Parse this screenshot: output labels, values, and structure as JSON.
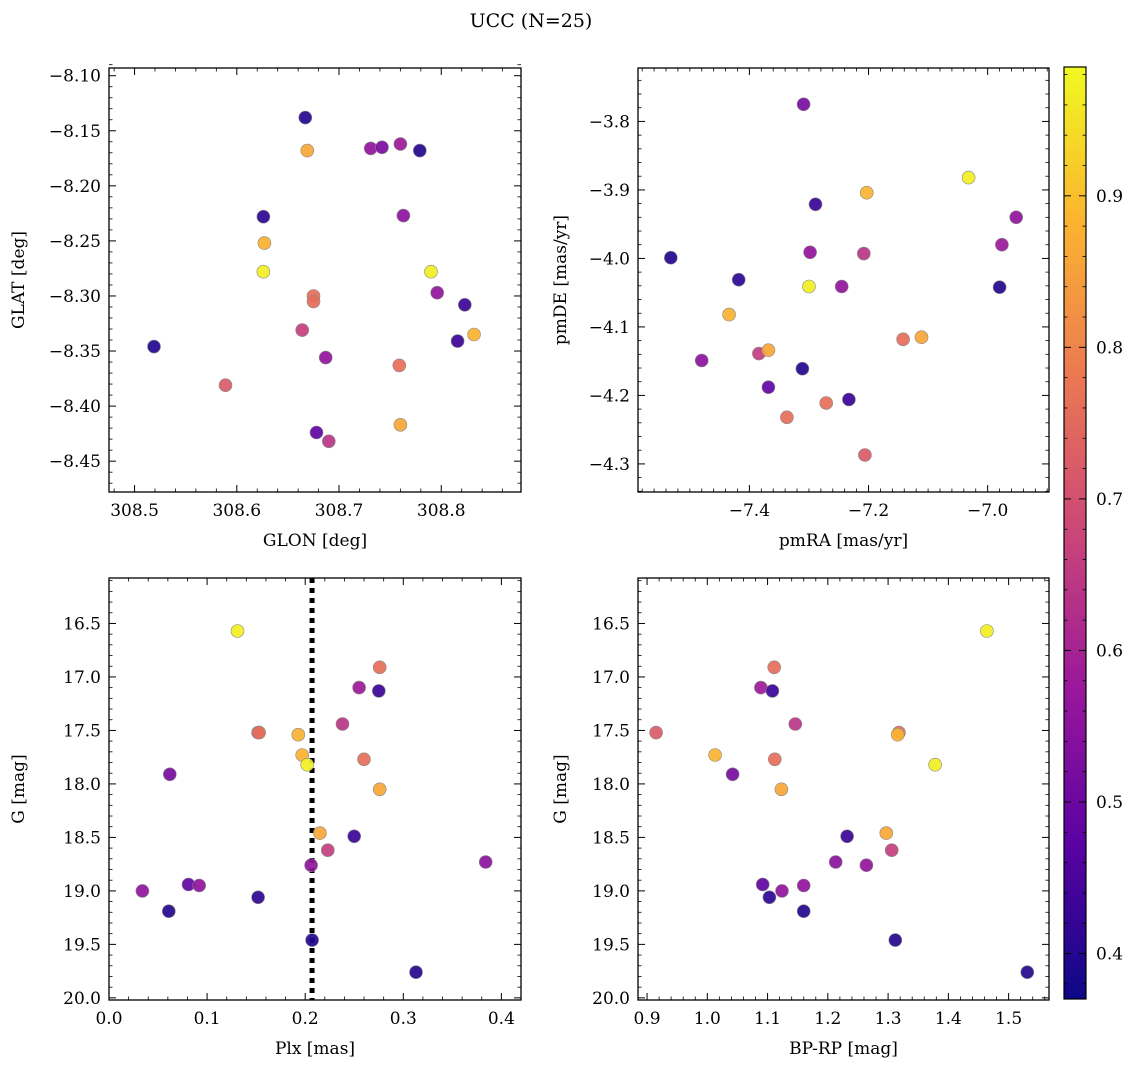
{
  "title": "UCC (N=25)",
  "colors": {
    "star_edge": "#8a8a8a",
    "reference_line": "#000000",
    "colormap": [
      "#0d0887",
      "#5b02a3",
      "#9a179b",
      "#cb4678",
      "#eb7852",
      "#fbb32f",
      "#f0f921"
    ]
  },
  "colorbar": {
    "vmin": 0.37,
    "vmax": 0.985,
    "ticks": [
      0.4,
      0.5,
      0.6,
      0.7,
      0.8,
      0.9
    ],
    "tick_labels": [
      "0.4",
      "0.5",
      "0.6",
      "0.7",
      "0.8",
      "0.9"
    ]
  },
  "stars": [
    {
      "glon": 308.519,
      "glat": -8.346,
      "pmra": -7.532,
      "pmde": -3.999,
      "plx": 0.061,
      "g": 19.19,
      "bprp": 1.16,
      "prob": 0.4
    },
    {
      "glon": 308.589,
      "glat": -8.381,
      "pmra": -7.206,
      "pmde": -4.287,
      "plx": 0.152,
      "g": 17.52,
      "bprp": 0.915,
      "prob": 0.72
    },
    {
      "glon": 308.626,
      "glat": -8.228,
      "pmra": -7.418,
      "pmde": -4.031,
      "plx": 0.152,
      "g": 19.06,
      "bprp": 1.103,
      "prob": 0.41
    },
    {
      "glon": 308.627,
      "glat": -8.252,
      "pmra": -7.434,
      "pmde": -4.082,
      "plx": 0.197,
      "g": 17.73,
      "bprp": 1.013,
      "prob": 0.88
    },
    {
      "glon": 308.626,
      "glat": -8.278,
      "pmra": -7.032,
      "pmde": -3.882,
      "plx": 0.131,
      "g": 16.57,
      "bprp": 1.464,
      "prob": 0.97
    },
    {
      "glon": 308.664,
      "glat": -8.331,
      "pmra": -7.384,
      "pmde": -4.139,
      "plx": 0.223,
      "g": 18.62,
      "bprp": 1.306,
      "prob": 0.66
    },
    {
      "glon": 308.667,
      "glat": -8.138,
      "pmra": -7.311,
      "pmde": -4.161,
      "plx": 0.207,
      "g": 19.46,
      "bprp": 1.312,
      "prob": 0.4
    },
    {
      "glon": 308.669,
      "glat": -8.168,
      "pmra": -7.368,
      "pmde": -4.134,
      "plx": 0.215,
      "g": 18.46,
      "bprp": 1.297,
      "prob": 0.86
    },
    {
      "glon": 308.675,
      "glat": -8.3,
      "pmra": -7.337,
      "pmde": -4.232,
      "plx": 0.153,
      "g": 17.52,
      "bprp": 1.318,
      "prob": 0.76
    },
    {
      "glon": 308.675,
      "glat": -8.305,
      "pmra": -7.142,
      "pmde": -4.118,
      "plx": 0.276,
      "g": 16.91,
      "bprp": 1.111,
      "prob": 0.76
    },
    {
      "glon": 308.678,
      "glat": -8.424,
      "pmra": -7.368,
      "pmde": -4.188,
      "plx": 0.081,
      "g": 18.94,
      "bprp": 1.092,
      "prob": 0.48
    },
    {
      "glon": 308.687,
      "glat": -8.356,
      "pmra": -7.298,
      "pmde": -3.991,
      "plx": 0.034,
      "g": 19.0,
      "bprp": 1.124,
      "prob": 0.56
    },
    {
      "glon": 308.69,
      "glat": -8.432,
      "pmra": -7.208,
      "pmde": -3.993,
      "plx": 0.238,
      "g": 17.44,
      "bprp": 1.146,
      "prob": 0.64
    },
    {
      "glon": 308.731,
      "glat": -8.166,
      "pmra": -7.245,
      "pmde": -4.041,
      "plx": 0.092,
      "g": 18.95,
      "bprp": 1.16,
      "prob": 0.56
    },
    {
      "glon": 308.742,
      "glat": -8.165,
      "pmra": -7.309,
      "pmde": -3.775,
      "plx": 0.062,
      "g": 17.91,
      "bprp": 1.042,
      "prob": 0.52
    },
    {
      "glon": 308.759,
      "glat": -8.363,
      "pmra": -7.271,
      "pmde": -4.211,
      "plx": 0.26,
      "g": 17.77,
      "bprp": 1.112,
      "prob": 0.76
    },
    {
      "glon": 308.76,
      "glat": -8.417,
      "pmra": -7.111,
      "pmde": -4.115,
      "plx": 0.276,
      "g": 18.05,
      "bprp": 1.123,
      "prob": 0.86
    },
    {
      "glon": 308.76,
      "glat": -8.162,
      "pmra": -6.976,
      "pmde": -3.98,
      "plx": 0.255,
      "g": 17.1,
      "bprp": 1.089,
      "prob": 0.58
    },
    {
      "glon": 308.763,
      "glat": -8.227,
      "pmra": -7.48,
      "pmde": -4.149,
      "plx": 0.384,
      "g": 18.73,
      "bprp": 1.213,
      "prob": 0.55
    },
    {
      "glon": 308.779,
      "glat": -8.168,
      "pmra": -6.98,
      "pmde": -4.042,
      "plx": 0.313,
      "g": 19.76,
      "bprp": 1.531,
      "prob": 0.4
    },
    {
      "glon": 308.79,
      "glat": -8.278,
      "pmra": -7.3,
      "pmde": -4.041,
      "plx": 0.202,
      "g": 17.82,
      "bprp": 1.378,
      "prob": 0.97
    },
    {
      "glon": 308.796,
      "glat": -8.297,
      "pmra": -6.952,
      "pmde": -3.94,
      "plx": 0.206,
      "g": 18.76,
      "bprp": 1.264,
      "prob": 0.56
    },
    {
      "glon": 308.816,
      "glat": -8.341,
      "pmra": -7.233,
      "pmde": -4.206,
      "plx": 0.25,
      "g": 18.49,
      "bprp": 1.232,
      "prob": 0.43
    },
    {
      "glon": 308.823,
      "glat": -8.308,
      "pmra": -7.289,
      "pmde": -3.921,
      "plx": 0.275,
      "g": 17.13,
      "bprp": 1.108,
      "prob": 0.43
    },
    {
      "glon": 308.832,
      "glat": -8.335,
      "pmra": -7.203,
      "pmde": -3.904,
      "plx": 0.193,
      "g": 17.54,
      "bprp": 1.316,
      "prob": 0.88
    }
  ],
  "chart_data": [
    {
      "type": "scatter",
      "xlabel": "GLON [deg]",
      "ylabel": "GLAT [deg]",
      "x_field": "glon",
      "y_field": "glat",
      "xlim": [
        308.475,
        308.878
      ],
      "ylim": [
        -8.478,
        -8.093
      ],
      "y_inverted": false,
      "xticks": [
        308.5,
        308.6,
        308.7,
        308.8
      ],
      "xtick_labels": [
        "308.5",
        "308.6",
        "308.7",
        "308.8"
      ],
      "xminor": [
        308.48,
        308.52,
        308.54,
        308.56,
        308.58,
        308.62,
        308.64,
        308.66,
        308.68,
        308.72,
        308.74,
        308.76,
        308.78,
        308.82,
        308.84,
        308.86
      ],
      "yticks": [
        -8.45,
        -8.4,
        -8.35,
        -8.3,
        -8.25,
        -8.2,
        -8.15,
        -8.1
      ],
      "ytick_labels": [
        "−8.45",
        "−8.40",
        "−8.35",
        "−8.30",
        "−8.25",
        "−8.20",
        "−8.15",
        "−8.10"
      ],
      "yminor": [
        -8.47,
        -8.46,
        -8.44,
        -8.43,
        -8.42,
        -8.41,
        -8.39,
        -8.38,
        -8.37,
        -8.36,
        -8.34,
        -8.33,
        -8.32,
        -8.31,
        -8.29,
        -8.28,
        -8.27,
        -8.26,
        -8.24,
        -8.23,
        -8.22,
        -8.21,
        -8.19,
        -8.18,
        -8.17,
        -8.16,
        -8.14,
        -8.13,
        -8.12,
        -8.11,
        -8.09
      ],
      "vline": null
    },
    {
      "type": "scatter",
      "xlabel": "pmRA [mas/yr]",
      "ylabel": "pmDE [mas/yr]",
      "x_field": "pmra",
      "y_field": "pmde",
      "xlim": [
        -7.587,
        -6.897
      ],
      "ylim": [
        -4.341,
        -3.722
      ],
      "y_inverted": false,
      "xticks": [
        -7.4,
        -7.2,
        -7.0
      ],
      "xtick_labels": [
        "−7.4",
        "−7.2",
        "−7.0"
      ],
      "xminor": [
        -7.58,
        -7.56,
        -7.54,
        -7.52,
        -7.5,
        -7.48,
        -7.46,
        -7.44,
        -7.42,
        -7.38,
        -7.36,
        -7.34,
        -7.32,
        -7.3,
        -7.28,
        -7.26,
        -7.24,
        -7.22,
        -7.18,
        -7.16,
        -7.14,
        -7.12,
        -7.1,
        -7.08,
        -7.06,
        -7.04,
        -7.02,
        -6.98,
        -6.96,
        -6.94,
        -6.92,
        -6.9
      ],
      "yticks": [
        -4.3,
        -4.2,
        -4.1,
        -4.0,
        -3.9,
        -3.8
      ],
      "ytick_labels": [
        "−4.3",
        "−4.2",
        "−4.1",
        "−4.0",
        "−3.9",
        "−3.8"
      ],
      "yminor": [
        -4.34,
        -4.32,
        -4.28,
        -4.26,
        -4.24,
        -4.22,
        -4.18,
        -4.16,
        -4.14,
        -4.12,
        -4.08,
        -4.06,
        -4.04,
        -4.02,
        -3.98,
        -3.96,
        -3.94,
        -3.92,
        -3.88,
        -3.86,
        -3.84,
        -3.82,
        -3.78,
        -3.76,
        -3.74
      ],
      "vline": null
    },
    {
      "type": "scatter",
      "xlabel": "Plx [mas]",
      "ylabel": "G [mag]",
      "x_field": "plx",
      "y_field": "g",
      "xlim": [
        0.0,
        0.42
      ],
      "ylim": [
        16.075,
        20.02
      ],
      "y_inverted": true,
      "xticks": [
        0.0,
        0.1,
        0.2,
        0.3,
        0.4
      ],
      "xtick_labels": [
        "0.0",
        "0.1",
        "0.2",
        "0.3",
        "0.4"
      ],
      "xminor": [
        0.02,
        0.04,
        0.06,
        0.08,
        0.12,
        0.14,
        0.16,
        0.18,
        0.22,
        0.24,
        0.26,
        0.28,
        0.32,
        0.34,
        0.36,
        0.38
      ],
      "yticks": [
        16.5,
        17.0,
        17.5,
        18.0,
        18.5,
        19.0,
        19.5,
        20.0
      ],
      "ytick_labels": [
        "16.5",
        "17.0",
        "17.5",
        "18.0",
        "18.5",
        "19.0",
        "19.5",
        "20.0"
      ],
      "yminor": [
        16.1,
        16.2,
        16.3,
        16.4,
        16.6,
        16.7,
        16.8,
        16.9,
        17.1,
        17.2,
        17.3,
        17.4,
        17.6,
        17.7,
        17.8,
        17.9,
        18.1,
        18.2,
        18.3,
        18.4,
        18.6,
        18.7,
        18.8,
        18.9,
        19.1,
        19.2,
        19.3,
        19.4,
        19.6,
        19.7,
        19.8,
        19.9
      ],
      "vline": 0.207
    },
    {
      "type": "scatter",
      "xlabel": "BP-RP [mag]",
      "ylabel": "G [mag]",
      "x_field": "bprp",
      "y_field": "g",
      "xlim": [
        0.885,
        1.567
      ],
      "ylim": [
        16.075,
        20.02
      ],
      "y_inverted": true,
      "xticks": [
        0.9,
        1.0,
        1.1,
        1.2,
        1.3,
        1.4,
        1.5
      ],
      "xtick_labels": [
        "0.9",
        "1.0",
        "1.1",
        "1.2",
        "1.3",
        "1.4",
        "1.5"
      ],
      "xminor": [
        0.92,
        0.94,
        0.96,
        0.98,
        1.02,
        1.04,
        1.06,
        1.08,
        1.12,
        1.14,
        1.16,
        1.18,
        1.22,
        1.24,
        1.26,
        1.28,
        1.32,
        1.34,
        1.36,
        1.38,
        1.42,
        1.44,
        1.46,
        1.48,
        1.52,
        1.54,
        1.56
      ],
      "yticks": [
        16.5,
        17.0,
        17.5,
        18.0,
        18.5,
        19.0,
        19.5,
        20.0
      ],
      "ytick_labels": [
        "16.5",
        "17.0",
        "17.5",
        "18.0",
        "18.5",
        "19.0",
        "19.5",
        "20.0"
      ],
      "yminor": [
        16.1,
        16.2,
        16.3,
        16.4,
        16.6,
        16.7,
        16.8,
        16.9,
        17.1,
        17.2,
        17.3,
        17.4,
        17.6,
        17.7,
        17.8,
        17.9,
        18.1,
        18.2,
        18.3,
        18.4,
        18.6,
        18.7,
        18.8,
        18.9,
        19.1,
        19.2,
        19.3,
        19.4,
        19.6,
        19.7,
        19.8,
        19.9
      ],
      "vline": null
    }
  ]
}
